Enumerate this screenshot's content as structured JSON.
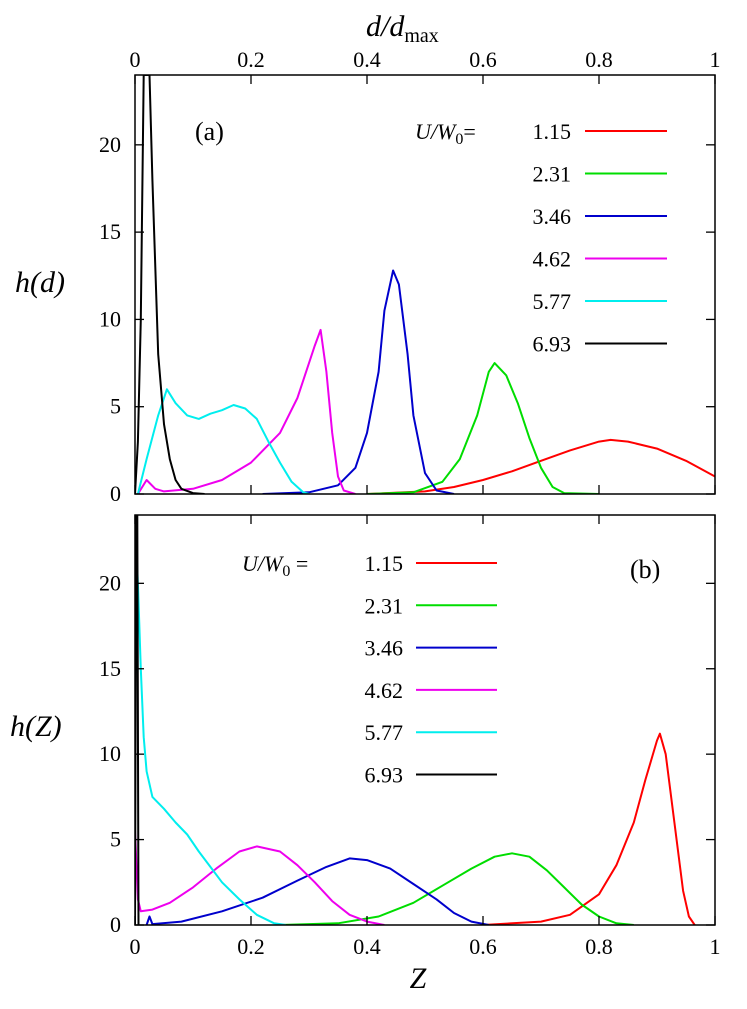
{
  "chart_data": [
    {
      "panel_tag": "(a)",
      "type": "line",
      "top_xlabel": "d/d",
      "top_xlabel_sub": "max",
      "ylabel": "h(d)",
      "xlim": [
        0,
        1
      ],
      "ylim": [
        0,
        24
      ],
      "xticks": [
        "0",
        "0.2",
        "0.4",
        "0.6",
        "0.8",
        "1"
      ],
      "yticks": [
        "0",
        "5",
        "10",
        "15",
        "20"
      ],
      "legend_prefix": "U/W",
      "legend_prefix_sub": "0",
      "legend_equals": "=",
      "series": [
        {
          "name": "1.15",
          "color": "#ff0000",
          "points": [
            [
              0.4,
              0
            ],
            [
              0.5,
              0.15
            ],
            [
              0.55,
              0.4
            ],
            [
              0.6,
              0.8
            ],
            [
              0.65,
              1.3
            ],
            [
              0.7,
              1.9
            ],
            [
              0.75,
              2.5
            ],
            [
              0.8,
              3.0
            ],
            [
              0.82,
              3.1
            ],
            [
              0.85,
              3.0
            ],
            [
              0.9,
              2.6
            ],
            [
              0.95,
              1.9
            ],
            [
              1.0,
              1.0
            ]
          ]
        },
        {
          "name": "2.31",
          "color": "#00dd00",
          "points": [
            [
              0.4,
              0
            ],
            [
              0.48,
              0.1
            ],
            [
              0.53,
              0.7
            ],
            [
              0.56,
              2.0
            ],
            [
              0.59,
              4.5
            ],
            [
              0.61,
              7.0
            ],
            [
              0.62,
              7.5
            ],
            [
              0.64,
              6.8
            ],
            [
              0.66,
              5.2
            ],
            [
              0.68,
              3.2
            ],
            [
              0.7,
              1.5
            ],
            [
              0.72,
              0.4
            ],
            [
              0.74,
              0.05
            ],
            [
              0.8,
              0
            ]
          ]
        },
        {
          "name": "3.46",
          "color": "#0000cc",
          "points": [
            [
              0.22,
              0
            ],
            [
              0.3,
              0.1
            ],
            [
              0.35,
              0.5
            ],
            [
              0.38,
              1.5
            ],
            [
              0.4,
              3.5
            ],
            [
              0.42,
              7.0
            ],
            [
              0.43,
              10.5
            ],
            [
              0.445,
              12.8
            ],
            [
              0.455,
              12.0
            ],
            [
              0.47,
              8.0
            ],
            [
              0.48,
              4.5
            ],
            [
              0.5,
              1.2
            ],
            [
              0.52,
              0.2
            ],
            [
              0.55,
              0
            ]
          ]
        },
        {
          "name": "4.62",
          "color": "#ee00ee",
          "points": [
            [
              0.005,
              0
            ],
            [
              0.02,
              0.8
            ],
            [
              0.035,
              0.3
            ],
            [
              0.05,
              0.15
            ],
            [
              0.1,
              0.3
            ],
            [
              0.15,
              0.8
            ],
            [
              0.2,
              1.8
            ],
            [
              0.25,
              3.5
            ],
            [
              0.28,
              5.5
            ],
            [
              0.3,
              7.5
            ],
            [
              0.31,
              8.5
            ],
            [
              0.32,
              9.4
            ],
            [
              0.33,
              7.0
            ],
            [
              0.34,
              3.5
            ],
            [
              0.35,
              1.0
            ],
            [
              0.36,
              0.2
            ],
            [
              0.38,
              0
            ]
          ]
        },
        {
          "name": "5.77",
          "color": "#00eeee",
          "points": [
            [
              0.005,
              0
            ],
            [
              0.02,
              2.0
            ],
            [
              0.04,
              4.5
            ],
            [
              0.055,
              6.0
            ],
            [
              0.07,
              5.2
            ],
            [
              0.09,
              4.5
            ],
            [
              0.11,
              4.3
            ],
            [
              0.13,
              4.6
            ],
            [
              0.15,
              4.8
            ],
            [
              0.17,
              5.1
            ],
            [
              0.19,
              4.9
            ],
            [
              0.21,
              4.3
            ],
            [
              0.23,
              3.0
            ],
            [
              0.25,
              1.8
            ],
            [
              0.27,
              0.7
            ],
            [
              0.29,
              0.1
            ],
            [
              0.3,
              0
            ]
          ]
        },
        {
          "name": "6.93",
          "color": "#000000",
          "points": [
            [
              0.0,
              0
            ],
            [
              0.005,
              3
            ],
            [
              0.01,
              10
            ],
            [
              0.015,
              24
            ],
            [
              0.025,
              24
            ],
            [
              0.03,
              18
            ],
            [
              0.04,
              8
            ],
            [
              0.05,
              4
            ],
            [
              0.06,
              2
            ],
            [
              0.07,
              0.8
            ],
            [
              0.08,
              0.3
            ],
            [
              0.1,
              0.05
            ],
            [
              0.12,
              0
            ]
          ]
        }
      ]
    },
    {
      "panel_tag": "(b)",
      "type": "line",
      "xlabel": "Z",
      "ylabel": "h(Z)",
      "xlim": [
        0,
        1
      ],
      "ylim": [
        0,
        24
      ],
      "xticks": [
        "0",
        "0.2",
        "0.4",
        "0.6",
        "0.8",
        "1"
      ],
      "yticks": [
        "0",
        "5",
        "10",
        "15",
        "20"
      ],
      "legend_prefix": "U/W",
      "legend_prefix_sub": "0",
      "legend_equals": " = ",
      "series": [
        {
          "name": "1.15",
          "color": "#ff0000",
          "points": [
            [
              0.6,
              0
            ],
            [
              0.7,
              0.2
            ],
            [
              0.75,
              0.6
            ],
            [
              0.8,
              1.8
            ],
            [
              0.83,
              3.5
            ],
            [
              0.86,
              6.0
            ],
            [
              0.88,
              8.5
            ],
            [
              0.9,
              10.8
            ],
            [
              0.905,
              11.2
            ],
            [
              0.915,
              10.0
            ],
            [
              0.93,
              6.0
            ],
            [
              0.945,
              2.0
            ],
            [
              0.955,
              0.5
            ],
            [
              0.965,
              0
            ]
          ]
        },
        {
          "name": "2.31",
          "color": "#00dd00",
          "points": [
            [
              0.25,
              0
            ],
            [
              0.35,
              0.1
            ],
            [
              0.42,
              0.5
            ],
            [
              0.48,
              1.3
            ],
            [
              0.53,
              2.3
            ],
            [
              0.58,
              3.3
            ],
            [
              0.62,
              4.0
            ],
            [
              0.65,
              4.2
            ],
            [
              0.68,
              4.0
            ],
            [
              0.71,
              3.2
            ],
            [
              0.74,
              2.2
            ],
            [
              0.77,
              1.2
            ],
            [
              0.8,
              0.5
            ],
            [
              0.83,
              0.1
            ],
            [
              0.86,
              0
            ]
          ]
        },
        {
          "name": "3.46",
          "color": "#0000cc",
          "points": [
            [
              0.02,
              0
            ],
            [
              0.025,
              0.5
            ],
            [
              0.03,
              0.05
            ],
            [
              0.08,
              0.2
            ],
            [
              0.15,
              0.8
            ],
            [
              0.22,
              1.6
            ],
            [
              0.28,
              2.6
            ],
            [
              0.33,
              3.4
            ],
            [
              0.37,
              3.9
            ],
            [
              0.4,
              3.8
            ],
            [
              0.44,
              3.3
            ],
            [
              0.48,
              2.4
            ],
            [
              0.52,
              1.5
            ],
            [
              0.55,
              0.7
            ],
            [
              0.58,
              0.2
            ],
            [
              0.61,
              0
            ]
          ]
        },
        {
          "name": "4.62",
          "color": "#ee00ee",
          "points": [
            [
              0.0,
              5.5
            ],
            [
              0.005,
              1.5
            ],
            [
              0.01,
              0.8
            ],
            [
              0.03,
              0.9
            ],
            [
              0.06,
              1.3
            ],
            [
              0.1,
              2.2
            ],
            [
              0.14,
              3.3
            ],
            [
              0.18,
              4.3
            ],
            [
              0.21,
              4.6
            ],
            [
              0.25,
              4.3
            ],
            [
              0.28,
              3.5
            ],
            [
              0.31,
              2.5
            ],
            [
              0.34,
              1.4
            ],
            [
              0.37,
              0.6
            ],
            [
              0.4,
              0.2
            ],
            [
              0.43,
              0
            ]
          ]
        },
        {
          "name": "5.77",
          "color": "#00eeee",
          "points": [
            [
              0.0,
              24
            ],
            [
              0.005,
              20
            ],
            [
              0.01,
              15
            ],
            [
              0.015,
              11
            ],
            [
              0.02,
              9
            ],
            [
              0.03,
              7.5
            ],
            [
              0.05,
              6.8
            ],
            [
              0.07,
              6.0
            ],
            [
              0.09,
              5.3
            ],
            [
              0.11,
              4.3
            ],
            [
              0.13,
              3.4
            ],
            [
              0.15,
              2.5
            ],
            [
              0.18,
              1.5
            ],
            [
              0.21,
              0.6
            ],
            [
              0.24,
              0.1
            ],
            [
              0.26,
              0
            ]
          ]
        },
        {
          "name": "6.93",
          "color": "#000000",
          "points": [
            [
              0.0,
              0
            ],
            [
              0.002,
              24
            ],
            [
              0.004,
              24
            ],
            [
              0.006,
              0
            ]
          ]
        }
      ]
    }
  ]
}
